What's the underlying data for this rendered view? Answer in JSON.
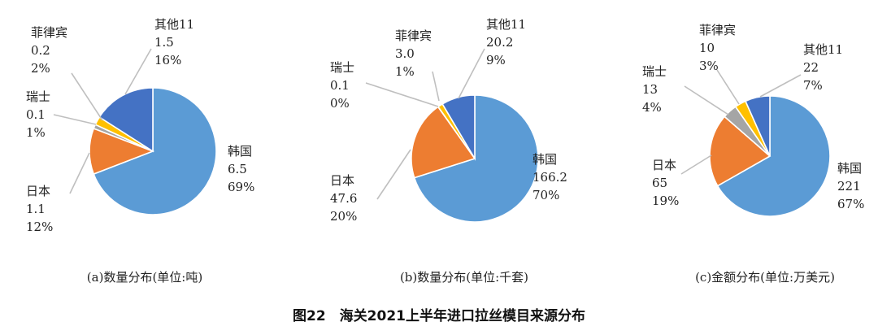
{
  "figure_title": "图22　海关2021上半年进口拉丝模目来源分布",
  "chart_data": [
    {
      "type": "pie",
      "caption": "(a)数量分布(单位:吨)",
      "slices": [
        {
          "name": "韩国",
          "value": "6.5",
          "percent": "69%",
          "color": "#5B9BD5"
        },
        {
          "name": "日本",
          "value": "1.1",
          "percent": "12%",
          "color": "#ED7D31"
        },
        {
          "name": "瑞士",
          "value": "0.1",
          "percent": "1%",
          "color": "#A5A5A5"
        },
        {
          "name": "菲律宾",
          "value": "0.2",
          "percent": "2%",
          "color": "#FFC000"
        },
        {
          "name": "其他11",
          "value": "1.5",
          "percent": "16%",
          "color": "#4472C4"
        }
      ]
    },
    {
      "type": "pie",
      "caption": "(b)数量分布(单位:千套)",
      "slices": [
        {
          "name": "韩国",
          "value": "166.2",
          "percent": "70%",
          "color": "#5B9BD5"
        },
        {
          "name": "日本",
          "value": "47.6",
          "percent": "20%",
          "color": "#ED7D31"
        },
        {
          "name": "瑞士",
          "value": "0.1",
          "percent": "0%",
          "color": "#A5A5A5"
        },
        {
          "name": "菲律宾",
          "value": "3.0",
          "percent": "1%",
          "color": "#FFC000"
        },
        {
          "name": "其他11",
          "value": "20.2",
          "percent": "9%",
          "color": "#4472C4"
        }
      ]
    },
    {
      "type": "pie",
      "caption": "(c)金额分布(单位:万美元)",
      "slices": [
        {
          "name": "韩国",
          "value": "221",
          "percent": "67%",
          "color": "#5B9BD5"
        },
        {
          "name": "日本",
          "value": "65",
          "percent": "19%",
          "color": "#ED7D31"
        },
        {
          "name": "瑞士",
          "value": "13",
          "percent": "4%",
          "color": "#A5A5A5"
        },
        {
          "name": "菲律宾",
          "value": "10",
          "percent": "3%",
          "color": "#FFC000"
        },
        {
          "name": "其他11",
          "value": "22",
          "percent": "7%",
          "color": "#4472C4"
        }
      ]
    }
  ]
}
